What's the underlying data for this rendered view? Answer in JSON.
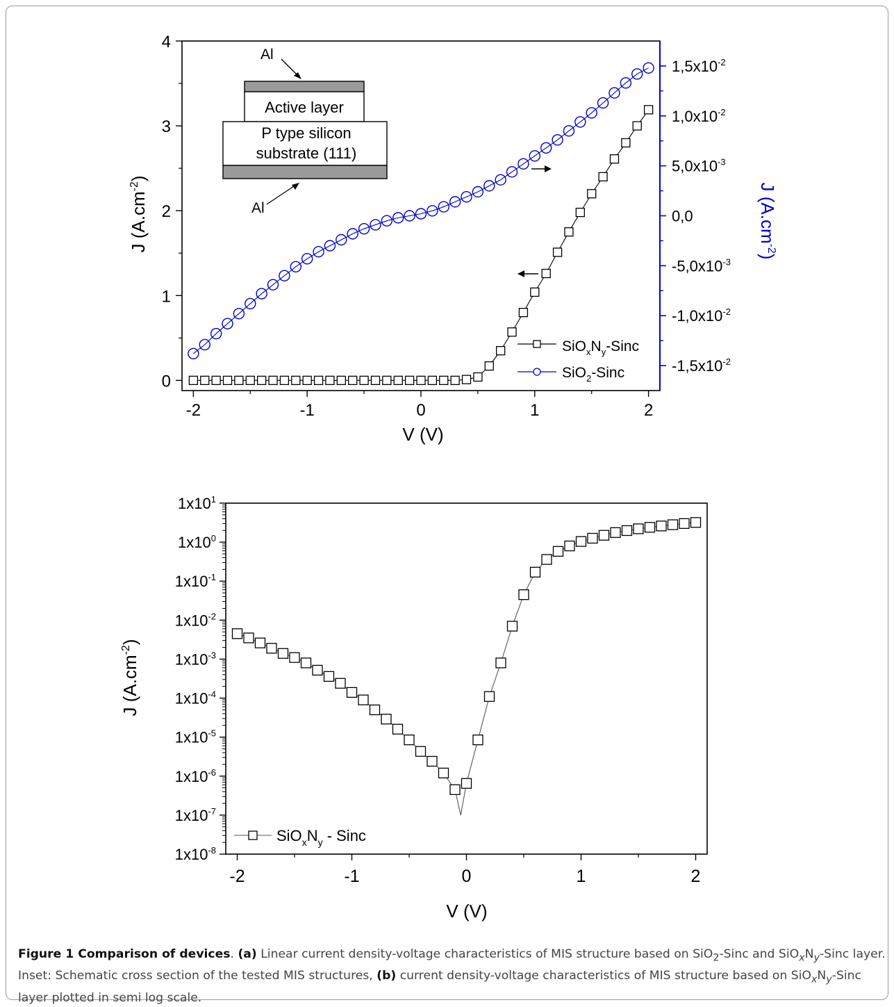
{
  "chart_data": [
    {
      "type": "scatter",
      "panel": "a",
      "xlabel": "V (V)",
      "ylabel_left": "J (A.cm",
      "ylabel_left_sup": "-2",
      "ylabel_right": "J (A.cm",
      "ylabel_right_sup": "-2",
      "xlim": [
        -2.1,
        2.1
      ],
      "ylim_left": [
        -0.12,
        4
      ],
      "ylim_right": [
        -0.0175,
        0.0175
      ],
      "xticks": [
        -2,
        -1,
        0,
        1,
        2
      ],
      "xtick_labels": [
        "-2",
        "-1",
        "0",
        "1",
        "2"
      ],
      "yticks_left": [
        0,
        1,
        2,
        3,
        4
      ],
      "ytick_labels_left": [
        "0",
        "1",
        "2",
        "3",
        "4"
      ],
      "yticks_right": [
        -0.015,
        -0.01,
        -0.005,
        0,
        0.005,
        0.01,
        0.015
      ],
      "ytick_labels_right": [
        {
          "base": "-1,5x10",
          "exp": "-2"
        },
        {
          "base": "-1,0x10",
          "exp": "-2"
        },
        {
          "base": "-5,0x10",
          "exp": "-3"
        },
        {
          "base": "0,0",
          "exp": ""
        },
        {
          "base": "5,0x10",
          "exp": "-3"
        },
        {
          "base": "1,0x10",
          "exp": "-2"
        },
        {
          "base": "1,5x10",
          "exp": "-2"
        }
      ],
      "right_axis_color": "#0000cc",
      "legend_position": "bottom-right",
      "series": [
        {
          "name": "SiOxNy-Sinc",
          "legend": {
            "a": "SiO",
            "b": "x",
            "c": "N",
            "d": "y",
            "e": "-Sinc"
          },
          "axis": "left",
          "marker": "square",
          "color": "#000000",
          "x": [
            -2,
            -1.9,
            -1.8,
            -1.7,
            -1.6,
            -1.5,
            -1.4,
            -1.3,
            -1.2,
            -1.1,
            -1,
            -0.9,
            -0.8,
            -0.7,
            -0.6,
            -0.5,
            -0.4,
            -0.3,
            -0.2,
            -0.1,
            0,
            0.1,
            0.2,
            0.3,
            0.4,
            0.5,
            0.6,
            0.7,
            0.8,
            0.9,
            1,
            1.1,
            1.2,
            1.3,
            1.4,
            1.5,
            1.6,
            1.7,
            1.8,
            1.9,
            2
          ],
          "y": [
            0,
            0,
            0,
            0,
            0,
            0,
            0,
            0,
            0,
            0,
            0,
            0,
            0,
            0,
            0,
            0,
            0,
            0,
            0,
            0,
            0,
            0,
            0,
            0,
            0.01,
            0.04,
            0.17,
            0.35,
            0.57,
            0.8,
            1.04,
            1.26,
            1.51,
            1.75,
            1.98,
            2.2,
            2.4,
            2.61,
            2.8,
            3,
            3.19
          ]
        },
        {
          "name": "SiO2-Sinc",
          "legend": {
            "a": "SiO",
            "b": "2",
            "c": "",
            "d": "",
            "e": "-Sinc"
          },
          "axis": "right",
          "marker": "circle",
          "color": "#0000cc",
          "x": [
            -2,
            -1.9,
            -1.8,
            -1.7,
            -1.6,
            -1.5,
            -1.4,
            -1.3,
            -1.2,
            -1.1,
            -1,
            -0.9,
            -0.8,
            -0.7,
            -0.6,
            -0.5,
            -0.4,
            -0.3,
            -0.2,
            -0.1,
            0,
            0.1,
            0.2,
            0.3,
            0.4,
            0.5,
            0.6,
            0.7,
            0.8,
            0.9,
            1,
            1.1,
            1.2,
            1.3,
            1.4,
            1.5,
            1.6,
            1.7,
            1.8,
            1.9,
            2
          ],
          "y": [
            -0.0138,
            -0.0129,
            -0.0118,
            -0.0108,
            -0.0098,
            -0.0088,
            -0.0078,
            -0.0069,
            -0.006,
            -0.0051,
            -0.0043,
            -0.0036,
            -0.003,
            -0.0024,
            -0.0018,
            -0.0013,
            -0.0009,
            -0.0005,
            -0.0002,
            0,
            0.0002,
            0.0005,
            0.0009,
            0.0014,
            0.0019,
            0.0024,
            0.003,
            0.0036,
            0.0044,
            0.0052,
            0.006,
            0.0068,
            0.0076,
            0.0085,
            0.0094,
            0.0103,
            0.0113,
            0.0123,
            0.0133,
            0.0142,
            0.0148
          ]
        }
      ],
      "annotations": [
        {
          "kind": "arrow",
          "direction": "left",
          "target_series": "SiOxNy-Sinc"
        },
        {
          "kind": "arrow",
          "direction": "right",
          "target_series": "SiO2-Sinc"
        }
      ],
      "inset": {
        "labels": [
          "Al",
          "Active layer",
          "P type silicon",
          "substrate (111)",
          "Al"
        ]
      }
    },
    {
      "type": "line",
      "panel": "b",
      "xlabel": "V (V)",
      "ylabel": "J (A.cm",
      "ylabel_sup": "-2",
      "xlim": [
        -2.1,
        2.1
      ],
      "ylim": [
        1e-08,
        10
      ],
      "yscale": "log",
      "xticks": [
        -2,
        -1,
        0,
        1,
        2
      ],
      "xtick_labels": [
        "-2",
        "-1",
        "0",
        "1",
        "2"
      ],
      "yticks": [
        1e-08,
        1e-07,
        1e-06,
        1e-05,
        0.0001,
        0.001,
        0.01,
        0.1,
        1,
        10
      ],
      "ytick_labels": [
        {
          "base": "1x10",
          "exp": "-8"
        },
        {
          "base": "1x10",
          "exp": "-7"
        },
        {
          "base": "1x10",
          "exp": "-6"
        },
        {
          "base": "1x10",
          "exp": "-5"
        },
        {
          "base": "1x10",
          "exp": "-4"
        },
        {
          "base": "1x10",
          "exp": "-3"
        },
        {
          "base": "1x10",
          "exp": "-2"
        },
        {
          "base": "1x10",
          "exp": "-1"
        },
        {
          "base": "1x10",
          "exp": "0"
        },
        {
          "base": "1x10",
          "exp": "1"
        }
      ],
      "legend_position": "bottom-left",
      "series": [
        {
          "name": "SiOxNy - Sinc",
          "legend": {
            "a": "SiO",
            "b": "x",
            "c": "N",
            "d": "y",
            "e": " - Sinc"
          },
          "marker": "square",
          "color": "#000000",
          "x": [
            -2,
            -1.9,
            -1.8,
            -1.7,
            -1.6,
            -1.5,
            -1.4,
            -1.3,
            -1.2,
            -1.1,
            -1,
            -0.9,
            -0.8,
            -0.7,
            -0.6,
            -0.5,
            -0.4,
            -0.3,
            -0.2,
            -0.1,
            0,
            0.1,
            0.2,
            0.3,
            0.4,
            0.5,
            0.6,
            0.7,
            0.8,
            0.9,
            1,
            1.1,
            1.2,
            1.3,
            1.4,
            1.5,
            1.6,
            1.7,
            1.8,
            1.9,
            2
          ],
          "y": [
            0.0045,
            0.0035,
            0.0026,
            0.0019,
            0.0014,
            0.0011,
            0.0008,
            0.00052,
            0.00036,
            0.00024,
            0.00014,
            9e-05,
            5e-05,
            2.9e-05,
            1.6e-05,
            8.5e-06,
            4.3e-06,
            2.4e-06,
            1.2e-06,
            4.5e-07,
            6.5e-07,
            8.5e-06,
            0.00011,
            0.0008,
            0.007,
            0.045,
            0.17,
            0.36,
            0.58,
            0.8,
            1.04,
            1.26,
            1.5,
            1.76,
            1.98,
            2.2,
            2.4,
            2.6,
            2.8,
            3,
            3.2
          ],
          "line_minimum": {
            "x": -0.05,
            "y": 1e-07
          }
        }
      ]
    }
  ],
  "caption": {
    "lead": "Figure 1 Comparison of devices",
    "t1": ". ",
    "a_label": "(a)",
    "t2": " Linear current density-voltage characteristics of MIS structure based on SiO",
    "t2_sub": "2",
    "t3": "-Sinc and SiO",
    "t3_sub": "x",
    "t4": "N",
    "t4_sub": "y",
    "t5": "-Sinc layer. Inset: Schematic cross section of the tested MIS structures, ",
    "b_label": "(b)",
    "t6": " current density-voltage characteristics of MIS structure based on SiO",
    "t6_sub": "x",
    "t7": "N",
    "t7_sub": "y",
    "t8": "-Sinc layer plotted in semi log scale."
  }
}
